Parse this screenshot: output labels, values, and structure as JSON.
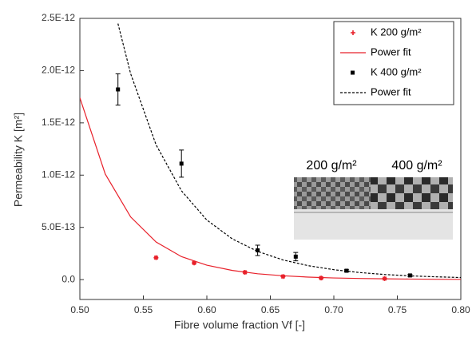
{
  "chart_data": {
    "type": "scatter",
    "x_label": "Fibre volume fraction Vf [-]",
    "y_label": "Permeability K [m²]",
    "xlim": [
      0.5,
      0.8
    ],
    "ylim": [
      -1.9e-13,
      2.5e-12
    ],
    "xticks": [
      {
        "value": 0.5,
        "label": "0.50"
      },
      0.55,
      {
        "value": 0.6,
        "label": "0.60"
      },
      0.65,
      {
        "value": 0.7,
        "label": "0.70"
      },
      0.75,
      {
        "value": 0.8,
        "label": "0.80"
      }
    ],
    "yticks": [
      {
        "value": 0,
        "label": "0.0"
      },
      {
        "value": 5e-13,
        "label": "5.0E-13"
      },
      {
        "value": 1e-12,
        "label": "1.0E-12"
      },
      {
        "value": 1.5e-12,
        "label": "1.5E-12"
      },
      {
        "value": 2e-12,
        "label": "2.0E-12"
      },
      {
        "value": 2.5e-12,
        "label": "2.5E-12"
      }
    ],
    "legend": "top-right",
    "series": [
      {
        "name": "K 200 g/m²",
        "type": "scatter",
        "marker": "star",
        "color": "#e8202a",
        "x": [
          0.56,
          0.59,
          0.63,
          0.66,
          0.69,
          0.74
        ],
        "y": [
          2.1e-13,
          1.6e-13,
          7e-14,
          3e-14,
          1.5e-14,
          1e-14
        ]
      },
      {
        "name": "Power fit",
        "type": "line",
        "dash": false,
        "color": "#e8202a",
        "x": [
          0.5,
          0.52,
          0.54,
          0.56,
          0.58,
          0.6,
          0.62,
          0.64,
          0.66,
          0.68,
          0.7,
          0.72,
          0.74,
          0.76,
          0.78,
          0.8
        ],
        "y": [
          1.74e-12,
          1.01e-12,
          6e-13,
          3.6e-13,
          2.2e-13,
          1.38e-13,
          8.8e-14,
          5.6e-14,
          3.7e-14,
          2.4e-14,
          1.6e-14,
          1.1e-14,
          7.5e-15,
          5.2e-15,
          3.6e-15,
          2.5e-15
        ]
      },
      {
        "name": "K 400 g/m²",
        "type": "scatter",
        "marker": "square",
        "color": "#000000",
        "x": [
          0.53,
          0.58,
          0.64,
          0.67,
          0.71,
          0.76
        ],
        "y": [
          1.82e-12,
          1.11e-12,
          2.8e-13,
          2.2e-13,
          8.5e-14,
          4e-14
        ],
        "errors": [
          1.5e-13,
          1.3e-13,
          5e-14,
          4e-14,
          1e-14,
          1e-14
        ]
      },
      {
        "name": "Power fit",
        "type": "line",
        "dash": true,
        "color": "#000000",
        "x": [
          0.53,
          0.54,
          0.56,
          0.58,
          0.6,
          0.62,
          0.64,
          0.66,
          0.68,
          0.7,
          0.72,
          0.74,
          0.76,
          0.78,
          0.8
        ],
        "y": [
          2.45e-12,
          1.97e-12,
          1.29e-12,
          8.5e-13,
          5.7e-13,
          3.9e-13,
          2.7e-13,
          1.88e-13,
          1.33e-13,
          9.5e-14,
          6.8e-14,
          4.9e-14,
          3.6e-14,
          2.7e-14,
          2e-14
        ]
      }
    ],
    "inset_labels": [
      "200 g/m²",
      "400 g/m²"
    ]
  }
}
